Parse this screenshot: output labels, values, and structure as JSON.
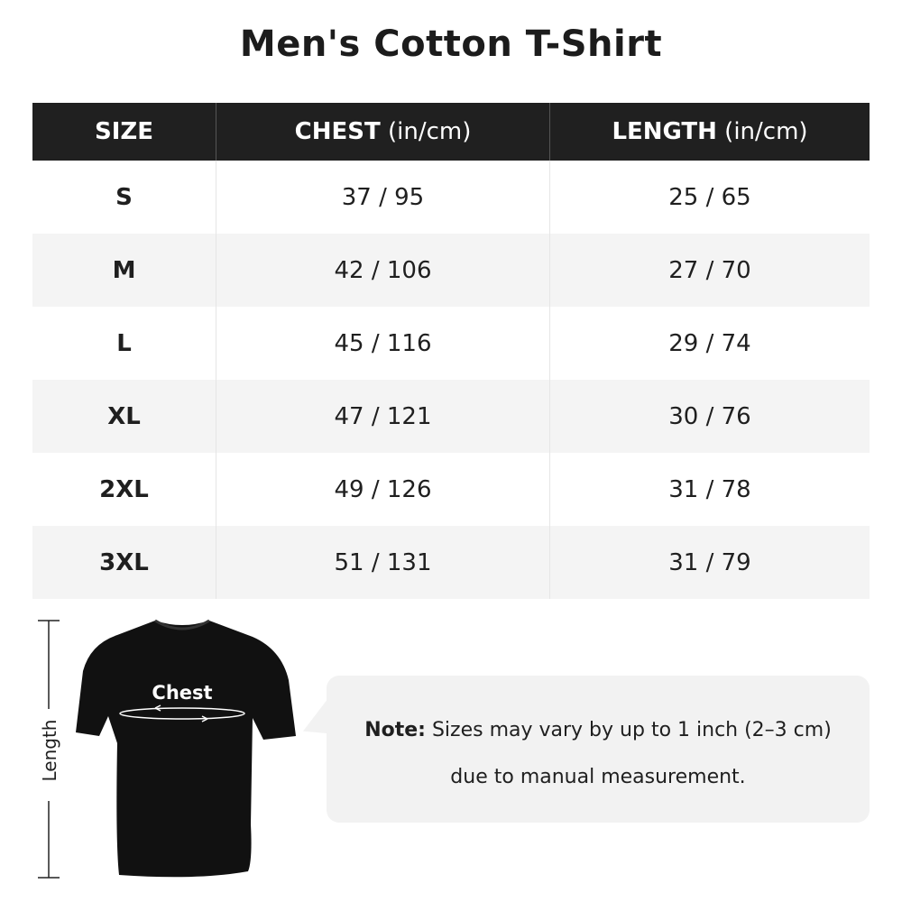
{
  "title": "Men's Cotton T-Shirt",
  "table": {
    "headers": [
      {
        "label": "SIZE",
        "unit": ""
      },
      {
        "label": "CHEST",
        "unit": " (in/cm)"
      },
      {
        "label": "LENGTH",
        "unit": " (in/cm)"
      }
    ],
    "rows": [
      {
        "size": "S",
        "chest": "37 / 95",
        "length": "25 / 65"
      },
      {
        "size": "M",
        "chest": "42 / 106",
        "length": "27 / 70"
      },
      {
        "size": "L",
        "chest": "45 / 116",
        "length": "29 / 74"
      },
      {
        "size": "XL",
        "chest": "47 / 121",
        "length": "30 / 76"
      },
      {
        "size": "2XL",
        "chest": "49 / 126",
        "length": "31 / 78"
      },
      {
        "size": "3XL",
        "chest": "51 / 131",
        "length": "31 / 79"
      }
    ]
  },
  "diagram": {
    "length_label": "Length",
    "chest_label": "Chest"
  },
  "note": {
    "label": "Note:",
    "line1": " Sizes may vary by up to 1 inch (2–3 cm)",
    "line2": "due to manual measurement."
  },
  "colors": {
    "header_bg": "#202020",
    "alt_row_bg": "#f4f4f4",
    "note_bg": "#f2f2f2"
  }
}
